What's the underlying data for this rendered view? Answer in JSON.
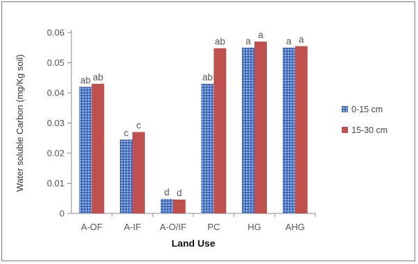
{
  "chart_data": {
    "type": "bar",
    "categories": [
      "A-OF",
      "A-IF",
      "A-O/IF",
      "PC",
      "HG",
      "AHG"
    ],
    "series": [
      {
        "name": "0-15 cm",
        "color": "#4a76c4",
        "pattern": "dotted",
        "values": [
          0.042,
          0.0245,
          0.0048,
          0.043,
          0.055,
          0.055
        ],
        "labels": [
          "ab",
          "c",
          "d",
          "ab",
          "a",
          "a"
        ]
      },
      {
        "name": "15-30 cm",
        "color": "#c0504d",
        "pattern": "solid",
        "values": [
          0.043,
          0.027,
          0.0046,
          0.0548,
          0.057,
          0.0555
        ],
        "labels": [
          "ab",
          "c",
          "d",
          "ab",
          "a",
          "a"
        ]
      }
    ],
    "yticks": [
      "0",
      "0.01",
      "0.02",
      "0.03",
      "0.04",
      "0.05",
      "0.06"
    ],
    "ylim": [
      0,
      0.06
    ],
    "xlabel": "Land Use",
    "ylabel": "Water soluble Carbon (mg/Kg soil)",
    "legend_position": "right",
    "grid": false
  }
}
